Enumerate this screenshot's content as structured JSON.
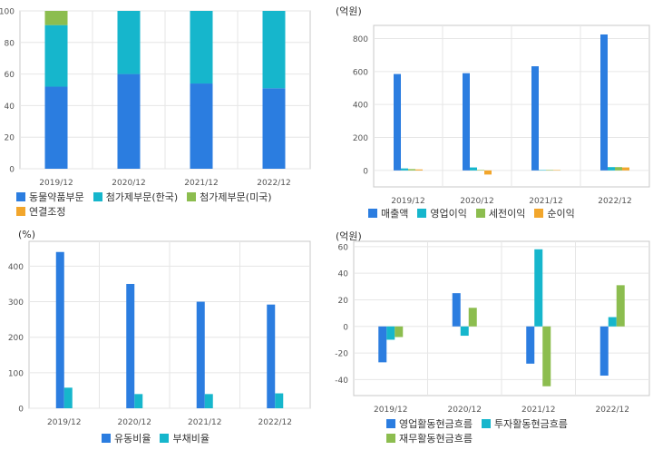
{
  "colors": {
    "blue": "#2b7de0",
    "cyan": "#16b6cc",
    "green": "#8cbd4f",
    "orange": "#f2a62c",
    "grid": "#e6e6e6",
    "axis": "#c8c8c8",
    "text": "#555555"
  },
  "chart_data": [
    {
      "type": "bar",
      "stacked": true,
      "unit": "",
      "categories": [
        "2019/12",
        "2020/12",
        "2021/12",
        "2022/12"
      ],
      "ylim": [
        0,
        100
      ],
      "yticks": [
        0,
        20,
        40,
        60,
        80,
        100
      ],
      "grid": true,
      "legend_placement": "bottom",
      "series": [
        {
          "name": "동물약품부문",
          "color": "#2b7de0",
          "values": [
            52,
            60,
            54,
            51
          ]
        },
        {
          "name": "첨가제부문(한국)",
          "color": "#16b6cc",
          "values": [
            39,
            40,
            46,
            49
          ]
        },
        {
          "name": "첨가제부문(미국)",
          "color": "#8cbd4f",
          "values": [
            9,
            0,
            0,
            0
          ]
        },
        {
          "name": "연결조정",
          "color": "#f2a62c",
          "values": [
            0,
            0,
            0,
            0
          ]
        }
      ]
    },
    {
      "type": "bar",
      "stacked": false,
      "unit": "(억원)",
      "categories": [
        "2019/12",
        "2020/12",
        "2021/12",
        "2022/12"
      ],
      "ylim": [
        -100,
        880
      ],
      "yticks": [
        0,
        200,
        400,
        600,
        800
      ],
      "grid": true,
      "legend_placement": "bottom",
      "series": [
        {
          "name": "매출액",
          "color": "#2b7de0",
          "values": [
            585,
            590,
            632,
            825
          ]
        },
        {
          "name": "영업이익",
          "color": "#16b6cc",
          "values": [
            12,
            18,
            2,
            20
          ]
        },
        {
          "name": "세전이익",
          "color": "#8cbd4f",
          "values": [
            8,
            3,
            3,
            20
          ]
        },
        {
          "name": "순이익",
          "color": "#f2a62c",
          "values": [
            6,
            -25,
            2,
            18
          ]
        }
      ]
    },
    {
      "type": "bar",
      "stacked": false,
      "unit": "(%)",
      "categories": [
        "2019/12",
        "2020/12",
        "2021/12",
        "2022/12"
      ],
      "ylim": [
        0,
        470
      ],
      "yticks": [
        0,
        100,
        200,
        300,
        400
      ],
      "grid": true,
      "legend_placement": "bottom",
      "series": [
        {
          "name": "유동비율",
          "color": "#2b7de0",
          "values": [
            440,
            350,
            300,
            292
          ]
        },
        {
          "name": "부채비율",
          "color": "#16b6cc",
          "values": [
            58,
            40,
            40,
            42
          ]
        }
      ]
    },
    {
      "type": "bar",
      "stacked": false,
      "unit": "(억원)",
      "categories": [
        "2019/12",
        "2020/12",
        "2021/12",
        "2022/12"
      ],
      "ylim": [
        -52,
        64
      ],
      "yticks": [
        -40,
        -20,
        0,
        20,
        40,
        60
      ],
      "grid": true,
      "legend_placement": "bottom",
      "series": [
        {
          "name": "영업활동현금흐름",
          "color": "#2b7de0",
          "values": [
            -27,
            25,
            -28,
            -37
          ]
        },
        {
          "name": "투자활동현금흐름",
          "color": "#16b6cc",
          "values": [
            -10,
            -7,
            58,
            7
          ]
        },
        {
          "name": "재무활동현금흐름",
          "color": "#8cbd4f",
          "values": [
            -8,
            14,
            -45,
            31
          ]
        }
      ]
    }
  ]
}
